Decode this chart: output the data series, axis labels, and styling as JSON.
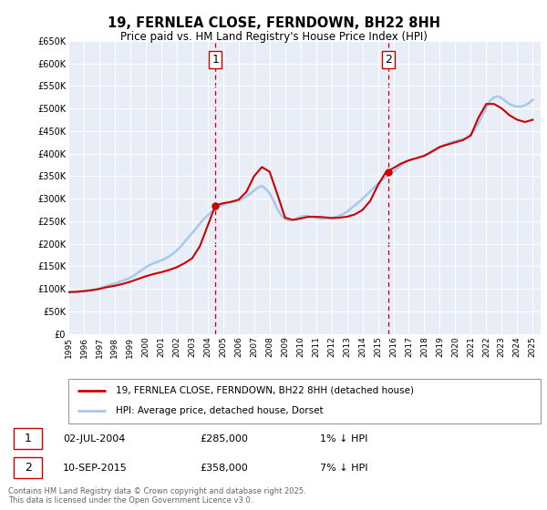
{
  "title": "19, FERNLEA CLOSE, FERNDOWN, BH22 8HH",
  "subtitle": "Price paid vs. HM Land Registry's House Price Index (HPI)",
  "ylim": [
    0,
    650000
  ],
  "yticks": [
    0,
    50000,
    100000,
    150000,
    200000,
    250000,
    300000,
    350000,
    400000,
    450000,
    500000,
    550000,
    600000,
    650000
  ],
  "ytick_labels": [
    "£0",
    "£50K",
    "£100K",
    "£150K",
    "£200K",
    "£250K",
    "£300K",
    "£350K",
    "£400K",
    "£450K",
    "£500K",
    "£550K",
    "£600K",
    "£650K"
  ],
  "background_color": "#ffffff",
  "plot_bg_color": "#e8edf8",
  "grid_color": "#ffffff",
  "hpi_color": "#a8c8e8",
  "price_color": "#cc0000",
  "marker1_date": 2004.5,
  "marker1_price": 285000,
  "marker1_label": "1",
  "marker2_date": 2015.67,
  "marker2_price": 358000,
  "marker2_label": "2",
  "legend_price_label": "19, FERNLEA CLOSE, FERNDOWN, BH22 8HH (detached house)",
  "legend_hpi_label": "HPI: Average price, detached house, Dorset",
  "annotation1_date": "02-JUL-2004",
  "annotation1_price": "£285,000",
  "annotation1_pct": "1% ↓ HPI",
  "annotation2_date": "10-SEP-2015",
  "annotation2_price": "£358,000",
  "annotation2_pct": "7% ↓ HPI",
  "footer": "Contains HM Land Registry data © Crown copyright and database right 2025.\nThis data is licensed under the Open Government Licence v3.0.",
  "hpi_x": [
    1995,
    1995.25,
    1995.5,
    1995.75,
    1996,
    1996.25,
    1996.5,
    1996.75,
    1997,
    1997.25,
    1997.5,
    1997.75,
    1998,
    1998.25,
    1998.5,
    1998.75,
    1999,
    1999.25,
    1999.5,
    1999.75,
    2000,
    2000.25,
    2000.5,
    2000.75,
    2001,
    2001.25,
    2001.5,
    2001.75,
    2002,
    2002.25,
    2002.5,
    2002.75,
    2003,
    2003.25,
    2003.5,
    2003.75,
    2004,
    2004.25,
    2004.5,
    2004.75,
    2005,
    2005.25,
    2005.5,
    2005.75,
    2006,
    2006.25,
    2006.5,
    2006.75,
    2007,
    2007.25,
    2007.5,
    2007.75,
    2008,
    2008.25,
    2008.5,
    2008.75,
    2009,
    2009.25,
    2009.5,
    2009.75,
    2010,
    2010.25,
    2010.5,
    2010.75,
    2011,
    2011.25,
    2011.5,
    2011.75,
    2012,
    2012.25,
    2012.5,
    2012.75,
    2013,
    2013.25,
    2013.5,
    2013.75,
    2014,
    2014.25,
    2014.5,
    2014.75,
    2015,
    2015.25,
    2015.5,
    2015.75,
    2016,
    2016.25,
    2016.5,
    2016.75,
    2017,
    2017.25,
    2017.5,
    2017.75,
    2018,
    2018.25,
    2018.5,
    2018.75,
    2019,
    2019.25,
    2019.5,
    2019.75,
    2020,
    2020.25,
    2020.5,
    2020.75,
    2021,
    2021.25,
    2021.5,
    2021.75,
    2022,
    2022.25,
    2022.5,
    2022.75,
    2023,
    2023.25,
    2023.5,
    2023.75,
    2024,
    2024.25,
    2024.5,
    2024.75,
    2025
  ],
  "hpi_y": [
    92000,
    93000,
    94000,
    95000,
    96000,
    97000,
    98000,
    99000,
    101000,
    104000,
    107000,
    110000,
    112000,
    115000,
    118000,
    121000,
    125000,
    130000,
    136000,
    142000,
    148000,
    153000,
    157000,
    160000,
    163000,
    167000,
    172000,
    178000,
    185000,
    194000,
    204000,
    214000,
    224000,
    234000,
    245000,
    255000,
    263000,
    271000,
    278000,
    283000,
    287000,
    290000,
    292000,
    293000,
    296000,
    300000,
    305000,
    311000,
    318000,
    325000,
    328000,
    322000,
    312000,
    296000,
    277000,
    263000,
    255000,
    252000,
    253000,
    256000,
    260000,
    262000,
    261000,
    259000,
    257000,
    256000,
    256000,
    257000,
    258000,
    259000,
    262000,
    266000,
    271000,
    278000,
    285000,
    292000,
    300000,
    308000,
    316000,
    325000,
    333000,
    341000,
    348000,
    354000,
    360000,
    367000,
    374000,
    381000,
    385000,
    388000,
    390000,
    393000,
    396000,
    399000,
    403000,
    408000,
    413000,
    418000,
    422000,
    425000,
    428000,
    430000,
    432000,
    436000,
    443000,
    453000,
    467000,
    485000,
    503000,
    517000,
    525000,
    527000,
    523000,
    516000,
    510000,
    506000,
    504000,
    504000,
    507000,
    512000,
    519000
  ],
  "price_x": [
    1995,
    1995.5,
    1996,
    1996.5,
    1997,
    1997.5,
    1998,
    1998.5,
    1999,
    1999.5,
    2000,
    2000.5,
    2001,
    2001.5,
    2002,
    2002.5,
    2003,
    2003.5,
    2004,
    2004.5,
    2005,
    2005.5,
    2006,
    2006.5,
    2007,
    2007.5,
    2008,
    2008.5,
    2009,
    2009.5,
    2010,
    2010.5,
    2011,
    2011.5,
    2012,
    2012.5,
    2013,
    2013.5,
    2014,
    2014.5,
    2015,
    2015.5,
    2016,
    2016.5,
    2017,
    2017.5,
    2018,
    2018.5,
    2019,
    2019.5,
    2020,
    2020.5,
    2021,
    2021.5,
    2022,
    2022.5,
    2023,
    2023.5,
    2024,
    2024.5,
    2025
  ],
  "price_y": [
    93000,
    93500,
    95000,
    97000,
    100000,
    104000,
    107000,
    111000,
    116000,
    122000,
    128000,
    133000,
    137000,
    142000,
    148000,
    157000,
    168000,
    195000,
    240000,
    285000,
    290000,
    293000,
    298000,
    315000,
    350000,
    370000,
    360000,
    310000,
    258000,
    253000,
    256000,
    260000,
    260000,
    259000,
    257000,
    258000,
    260000,
    265000,
    275000,
    295000,
    330000,
    358000,
    368000,
    378000,
    385000,
    390000,
    395000,
    405000,
    415000,
    420000,
    425000,
    430000,
    440000,
    480000,
    510000,
    510000,
    500000,
    485000,
    475000,
    470000,
    475000
  ],
  "xlim": [
    1995,
    2025.5
  ],
  "xticks": [
    1995,
    1996,
    1997,
    1998,
    1999,
    2000,
    2001,
    2002,
    2003,
    2004,
    2005,
    2006,
    2007,
    2008,
    2009,
    2010,
    2011,
    2012,
    2013,
    2014,
    2015,
    2016,
    2017,
    2018,
    2019,
    2020,
    2021,
    2022,
    2023,
    2024,
    2025
  ]
}
